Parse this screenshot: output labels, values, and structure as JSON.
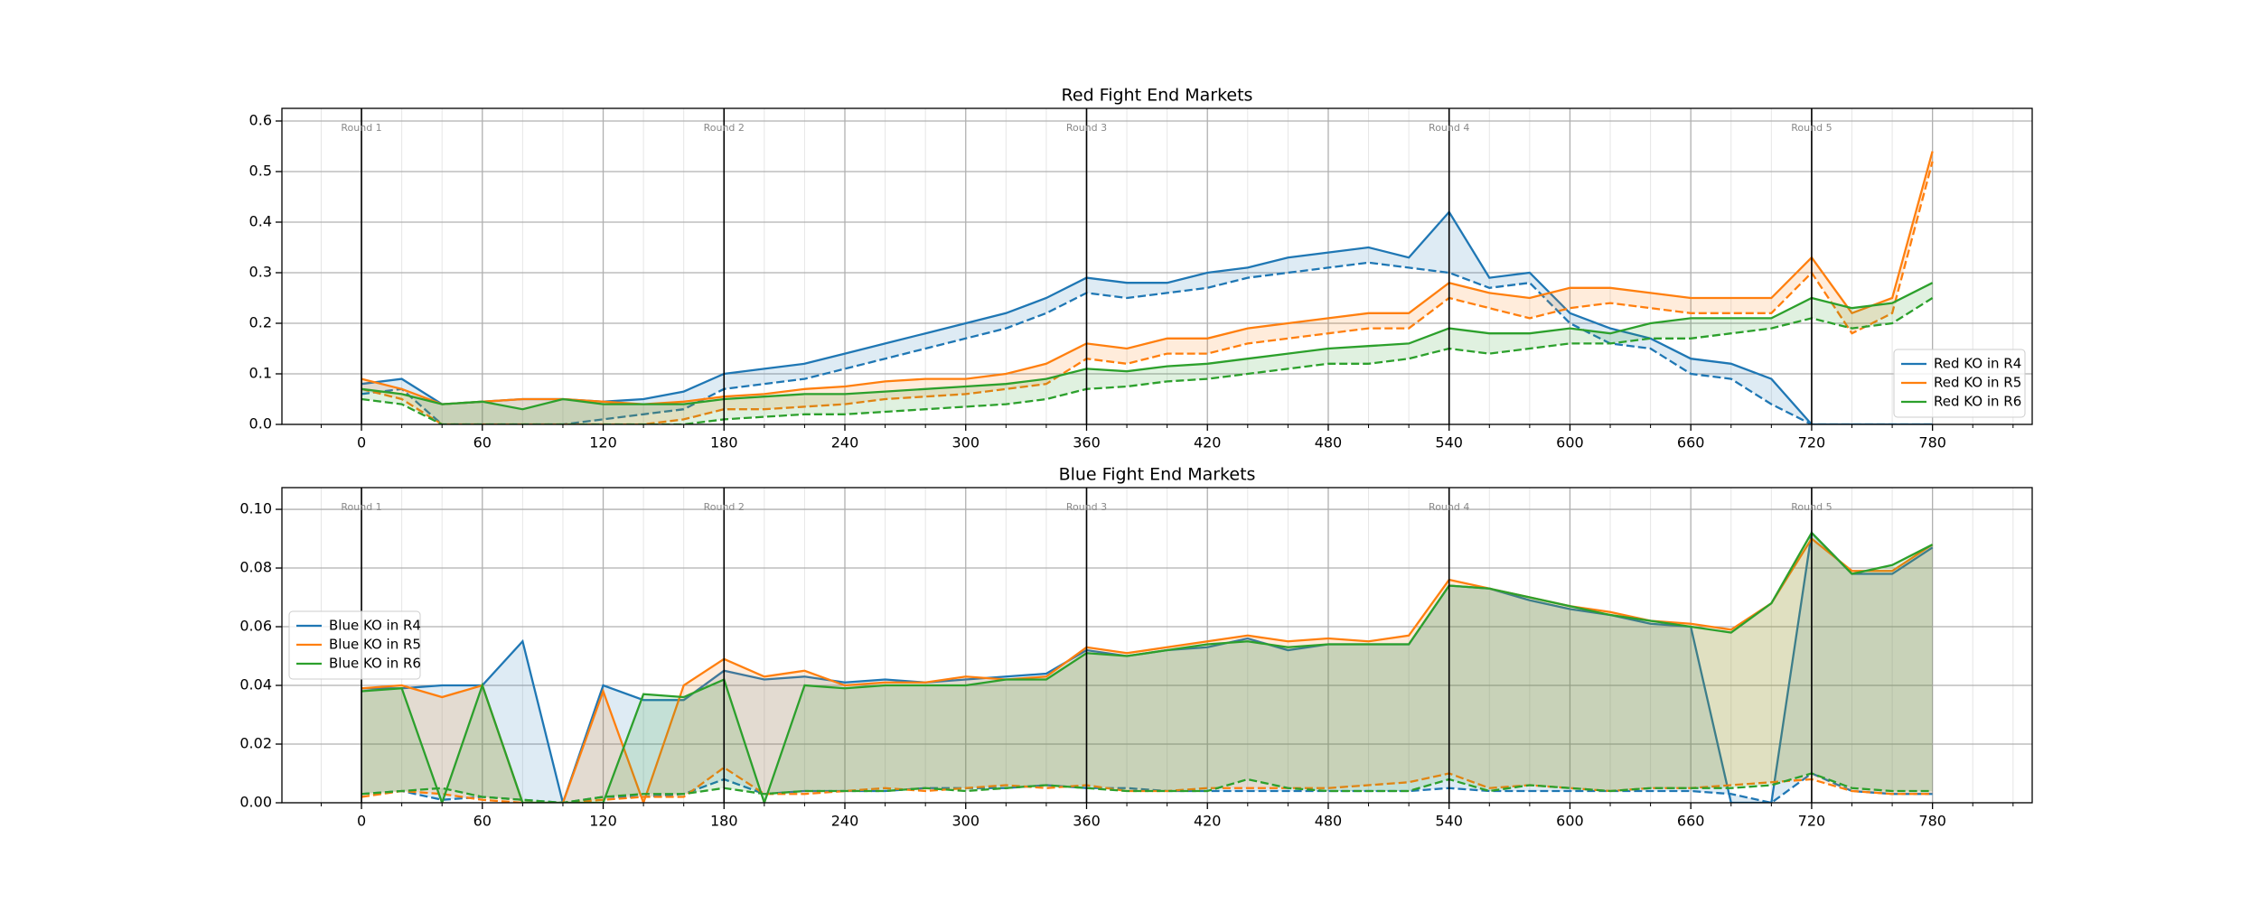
{
  "chart_data": [
    {
      "type": "line",
      "title": "Red Fight End Markets",
      "x": [
        0,
        20,
        40,
        60,
        80,
        100,
        120,
        140,
        160,
        180,
        200,
        220,
        240,
        260,
        280,
        300,
        320,
        340,
        360,
        380,
        400,
        420,
        440,
        460,
        480,
        500,
        520,
        540,
        560,
        580,
        600,
        620,
        640,
        660,
        680,
        700,
        720,
        740,
        760,
        780
      ],
      "series": [
        {
          "name": "Red KO in R4",
          "color": "#1f77b4",
          "values": [
            0.08,
            0.09,
            0.04,
            0.045,
            0.05,
            0.05,
            0.045,
            0.05,
            0.065,
            0.1,
            0.11,
            0.12,
            0.14,
            0.16,
            0.18,
            0.2,
            0.22,
            0.25,
            0.29,
            0.28,
            0.28,
            0.3,
            0.31,
            0.33,
            0.34,
            0.35,
            0.33,
            0.42,
            0.29,
            0.3,
            0.22,
            0.19,
            0.17,
            0.13,
            0.12,
            0.09,
            0.0,
            0.0,
            0.0,
            0.0
          ],
          "lower": [
            0.06,
            0.07,
            0.0,
            0.0,
            0.0,
            0.0,
            0.01,
            0.02,
            0.03,
            0.07,
            0.08,
            0.09,
            0.11,
            0.13,
            0.15,
            0.17,
            0.19,
            0.22,
            0.26,
            0.25,
            0.26,
            0.27,
            0.29,
            0.3,
            0.31,
            0.32,
            0.31,
            0.3,
            0.27,
            0.28,
            0.2,
            0.16,
            0.15,
            0.1,
            0.09,
            0.04,
            0.0,
            0.0,
            0.0,
            0.0
          ]
        },
        {
          "name": "Red KO in R5",
          "color": "#ff7f0e",
          "values": [
            0.09,
            0.07,
            0.04,
            0.045,
            0.05,
            0.05,
            0.045,
            0.04,
            0.045,
            0.055,
            0.06,
            0.07,
            0.075,
            0.085,
            0.09,
            0.09,
            0.1,
            0.12,
            0.16,
            0.15,
            0.17,
            0.17,
            0.19,
            0.2,
            0.21,
            0.22,
            0.22,
            0.28,
            0.26,
            0.25,
            0.27,
            0.27,
            0.26,
            0.25,
            0.25,
            0.25,
            0.33,
            0.22,
            0.25,
            0.54
          ],
          "lower": [
            0.07,
            0.05,
            0.0,
            0.0,
            0.0,
            0.0,
            0.0,
            0.0,
            0.01,
            0.03,
            0.03,
            0.035,
            0.04,
            0.05,
            0.055,
            0.06,
            0.07,
            0.08,
            0.13,
            0.12,
            0.14,
            0.14,
            0.16,
            0.17,
            0.18,
            0.19,
            0.19,
            0.25,
            0.23,
            0.21,
            0.23,
            0.24,
            0.23,
            0.22,
            0.22,
            0.22,
            0.3,
            0.18,
            0.22,
            0.52
          ]
        },
        {
          "name": "Red KO in R6",
          "color": "#2ca02c",
          "values": [
            0.07,
            0.06,
            0.04,
            0.045,
            0.03,
            0.05,
            0.04,
            0.04,
            0.04,
            0.05,
            0.055,
            0.06,
            0.06,
            0.065,
            0.07,
            0.075,
            0.08,
            0.09,
            0.11,
            0.105,
            0.115,
            0.12,
            0.13,
            0.14,
            0.15,
            0.155,
            0.16,
            0.19,
            0.18,
            0.18,
            0.19,
            0.18,
            0.2,
            0.21,
            0.21,
            0.21,
            0.25,
            0.23,
            0.24,
            0.28
          ],
          "lower": [
            0.05,
            0.04,
            0.0,
            0.0,
            0.0,
            0.0,
            0.0,
            0.0,
            0.0,
            0.01,
            0.015,
            0.02,
            0.02,
            0.025,
            0.03,
            0.035,
            0.04,
            0.05,
            0.07,
            0.075,
            0.085,
            0.09,
            0.1,
            0.11,
            0.12,
            0.12,
            0.13,
            0.15,
            0.14,
            0.15,
            0.16,
            0.16,
            0.17,
            0.17,
            0.18,
            0.19,
            0.21,
            0.19,
            0.2,
            0.25
          ]
        }
      ],
      "xlim": [
        -39.5,
        829.5
      ],
      "ylim": [
        0,
        0.625
      ],
      "xticks": [
        0,
        60,
        120,
        180,
        240,
        300,
        360,
        420,
        480,
        540,
        600,
        660,
        720,
        780
      ],
      "xminor": [
        -20,
        20,
        40,
        80,
        100,
        140,
        160,
        200,
        220,
        260,
        280,
        320,
        340,
        380,
        400,
        440,
        460,
        500,
        520,
        560,
        580,
        620,
        640,
        680,
        700,
        740,
        760,
        800,
        820
      ],
      "yticks": [
        {
          "value": 0,
          "label": "0.0"
        },
        {
          "value": 0.1,
          "label": "0.1"
        },
        {
          "value": 0.2,
          "label": "0.2"
        },
        {
          "value": 0.3,
          "label": "0.3"
        },
        {
          "value": 0.4,
          "label": "0.4"
        },
        {
          "value": 0.5,
          "label": "0.5"
        },
        {
          "value": 0.6,
          "label": "0.6"
        }
      ],
      "rounds": [
        {
          "x": 0,
          "label": "Round 1"
        },
        {
          "x": 180,
          "label": "Round 2"
        },
        {
          "x": 360,
          "label": "Round 3"
        },
        {
          "x": 540,
          "label": "Round 4"
        },
        {
          "x": 720,
          "label": "Round 5"
        }
      ],
      "grid": true,
      "legend": "lower right"
    },
    {
      "type": "line",
      "title": "Blue Fight End Markets",
      "x": [
        0,
        20,
        40,
        60,
        80,
        100,
        120,
        140,
        160,
        180,
        200,
        220,
        240,
        260,
        280,
        300,
        320,
        340,
        360,
        380,
        400,
        420,
        440,
        460,
        480,
        500,
        520,
        540,
        560,
        580,
        600,
        620,
        640,
        660,
        680,
        700,
        720,
        740,
        760,
        780
      ],
      "series": [
        {
          "name": "Blue KO in R4",
          "color": "#1f77b4",
          "values": [
            0.039,
            0.039,
            0.04,
            0.04,
            0.055,
            0.0,
            0.04,
            0.035,
            0.035,
            0.045,
            0.042,
            0.043,
            0.041,
            0.042,
            0.041,
            0.042,
            0.043,
            0.044,
            0.052,
            0.05,
            0.052,
            0.053,
            0.056,
            0.052,
            0.054,
            0.054,
            0.054,
            0.074,
            0.073,
            0.069,
            0.066,
            0.064,
            0.061,
            0.06,
            0.0,
            0.0,
            0.092,
            0.078,
            0.078,
            0.087
          ],
          "lower": [
            0.003,
            0.004,
            0.001,
            0.002,
            0.001,
            0.0,
            0.002,
            0.002,
            0.003,
            0.008,
            0.003,
            0.004,
            0.004,
            0.004,
            0.005,
            0.005,
            0.005,
            0.006,
            0.005,
            0.005,
            0.004,
            0.004,
            0.004,
            0.004,
            0.004,
            0.004,
            0.004,
            0.005,
            0.004,
            0.004,
            0.004,
            0.004,
            0.004,
            0.004,
            0.003,
            0.0,
            0.01,
            0.004,
            0.003,
            0.003
          ]
        },
        {
          "name": "Blue KO in R5",
          "color": "#ff7f0e",
          "values": [
            0.039,
            0.04,
            0.036,
            0.04,
            0.0,
            0.0,
            0.038,
            0.0,
            0.04,
            0.049,
            0.043,
            0.045,
            0.04,
            0.041,
            0.041,
            0.043,
            0.042,
            0.043,
            0.053,
            0.051,
            0.053,
            0.055,
            0.057,
            0.055,
            0.056,
            0.055,
            0.057,
            0.076,
            0.073,
            0.07,
            0.067,
            0.065,
            0.062,
            0.061,
            0.059,
            0.068,
            0.09,
            0.079,
            0.079,
            0.088
          ],
          "lower": [
            0.002,
            0.004,
            0.003,
            0.001,
            0.0,
            0.0,
            0.001,
            0.002,
            0.002,
            0.012,
            0.003,
            0.003,
            0.004,
            0.005,
            0.004,
            0.005,
            0.006,
            0.005,
            0.006,
            0.004,
            0.004,
            0.005,
            0.005,
            0.005,
            0.005,
            0.006,
            0.007,
            0.01,
            0.005,
            0.006,
            0.005,
            0.004,
            0.005,
            0.005,
            0.006,
            0.007,
            0.008,
            0.004,
            0.003,
            0.003
          ]
        },
        {
          "name": "Blue KO in R6",
          "color": "#2ca02c",
          "values": [
            0.038,
            0.039,
            0.0,
            0.04,
            0.0,
            0.0,
            0.0,
            0.037,
            0.036,
            0.042,
            0.0,
            0.04,
            0.039,
            0.04,
            0.04,
            0.04,
            0.042,
            0.042,
            0.051,
            0.05,
            0.052,
            0.054,
            0.055,
            0.053,
            0.054,
            0.054,
            0.054,
            0.074,
            0.073,
            0.07,
            0.067,
            0.064,
            0.062,
            0.06,
            0.058,
            0.068,
            0.092,
            0.078,
            0.081,
            0.088
          ],
          "lower": [
            0.003,
            0.004,
            0.005,
            0.002,
            0.001,
            0.0,
            0.002,
            0.003,
            0.003,
            0.005,
            0.003,
            0.004,
            0.004,
            0.004,
            0.005,
            0.004,
            0.005,
            0.006,
            0.005,
            0.004,
            0.004,
            0.004,
            0.008,
            0.005,
            0.004,
            0.004,
            0.004,
            0.008,
            0.004,
            0.006,
            0.005,
            0.004,
            0.005,
            0.005,
            0.005,
            0.006,
            0.01,
            0.005,
            0.004,
            0.004
          ]
        }
      ],
      "xlim": [
        -39.5,
        829.5
      ],
      "ylim": [
        0,
        0.1074
      ],
      "xticks": [
        0,
        60,
        120,
        180,
        240,
        300,
        360,
        420,
        480,
        540,
        600,
        660,
        720,
        780
      ],
      "xminor": [
        -20,
        20,
        40,
        80,
        100,
        140,
        160,
        200,
        220,
        260,
        280,
        320,
        340,
        380,
        400,
        440,
        460,
        500,
        520,
        560,
        580,
        620,
        640,
        680,
        700,
        740,
        760,
        800,
        820
      ],
      "yticks": [
        {
          "value": 0,
          "label": "0.00"
        },
        {
          "value": 0.02,
          "label": "0.02"
        },
        {
          "value": 0.04,
          "label": "0.04"
        },
        {
          "value": 0.06,
          "label": "0.06"
        },
        {
          "value": 0.08,
          "label": "0.08"
        },
        {
          "value": 0.1,
          "label": "0.10"
        }
      ],
      "rounds": [
        {
          "x": 0,
          "label": "Round 1"
        },
        {
          "x": 180,
          "label": "Round 2"
        },
        {
          "x": 360,
          "label": "Round 3"
        },
        {
          "x": 540,
          "label": "Round 4"
        },
        {
          "x": 720,
          "label": "Round 5"
        }
      ],
      "grid": true,
      "legend": "center left"
    }
  ]
}
